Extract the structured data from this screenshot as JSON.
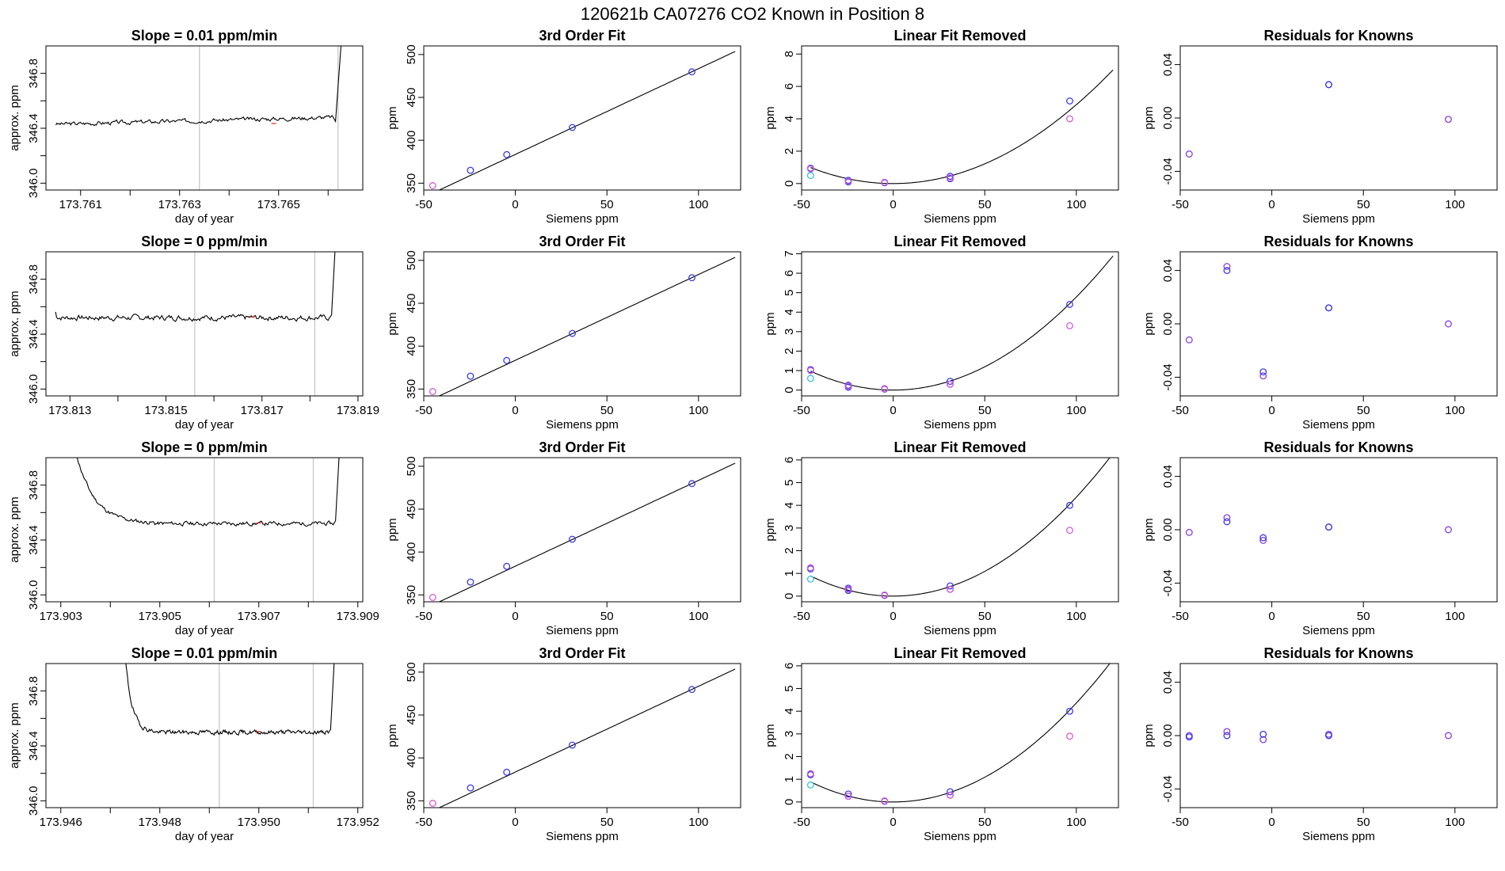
{
  "figure": {
    "title": "120621b      CA07276    CO2 Known in Position  8",
    "colors": {
      "blue": "#3a3ae6",
      "magenta": "#d75ad7",
      "cyan": "#33c3dd",
      "purple": "#8a3ce0",
      "red": "#e04040",
      "grid": "#c8c8c8"
    }
  },
  "chart_data": [
    {
      "type": "line",
      "title": "Slope =  0.01  ppm/min",
      "xlabel": "day of year",
      "ylabel": "approx. ppm",
      "xlim": [
        173.7603,
        173.7667
      ],
      "ylim": [
        345.95,
        347.0
      ],
      "xticks": [
        173.761,
        173.762,
        173.763,
        173.764,
        173.765,
        173.766
      ],
      "xtick_labels": [
        "173.761",
        "",
        "173.763",
        "",
        "173.765",
        ""
      ],
      "yticks": [
        346.0,
        346.2,
        346.4,
        346.6,
        346.8
      ],
      "ytick_labels": [
        "346.0",
        "",
        "346.4",
        "",
        "346.8"
      ],
      "vlines": [
        173.7634,
        173.7662
      ],
      "highlight_x": 173.7649,
      "trace": {
        "x0": 173.7605,
        "x1": 173.7661,
        "level": 346.43,
        "drift": 0.05,
        "noise": 0.012,
        "start_from": null,
        "start_end": null,
        "spike_at": 173.76615,
        "spike_end": 173.7663,
        "spike_to": 347.2,
        "seed": 3
      }
    },
    {
      "type": "scatter",
      "title": "3rd Order Fit",
      "xlabel": "Siemens ppm",
      "ylabel": "ppm",
      "xlim": [
        -50,
        123
      ],
      "ylim": [
        342,
        510
      ],
      "xticks": [
        -50,
        0,
        50,
        100
      ],
      "xtick_labels": [
        "-50",
        "0",
        "50",
        "100"
      ],
      "yticks": [
        350,
        400,
        450,
        500
      ],
      "ytick_labels": [
        "350",
        "400",
        "450",
        "500"
      ],
      "fit": {
        "a": 383.5,
        "b": 1.0,
        "c": 0,
        "d": 0
      },
      "series": [
        {
          "name": "blue",
          "x": [
            -24.5,
            -4.7,
            31.1,
            96.4
          ],
          "y": [
            365.0,
            383.3,
            414.9,
            479.8
          ]
        },
        {
          "name": "magenta",
          "x": [
            -45.1
          ],
          "y": [
            347.1
          ]
        }
      ]
    },
    {
      "type": "scatter",
      "title": "Linear Fit Removed",
      "xlabel": "Siemens ppm",
      "ylabel": "ppm",
      "xlim": [
        -50,
        123
      ],
      "ylim": [
        -0.4,
        8.5
      ],
      "xticks": [
        -50,
        0,
        50,
        100
      ],
      "xtick_labels": [
        "-50",
        "0",
        "50",
        "100"
      ],
      "yticks": [
        0,
        2,
        4,
        6,
        8
      ],
      "ytick_labels": [
        "0",
        "2",
        "4",
        "6",
        "8"
      ],
      "fit": {
        "a": 0,
        "b": 0.0,
        "c": 0.000487,
        "d": 0
      },
      "series": [
        {
          "name": "blue",
          "x": [
            -45.1,
            -24.5,
            -24.5,
            -4.7,
            31.1,
            31.1,
            96.4
          ],
          "y": [
            0.95,
            0.2,
            0.1,
            0.05,
            0.45,
            0.3,
            5.1
          ]
        },
        {
          "name": "magenta",
          "x": [
            -45.1,
            -24.5,
            -4.7,
            31.1,
            96.4
          ],
          "y": [
            0.9,
            0.15,
            0.08,
            0.35,
            4.0
          ]
        },
        {
          "name": "cyan",
          "x": [
            -45.1
          ],
          "y": [
            0.5
          ]
        }
      ]
    },
    {
      "type": "scatter",
      "title": "Residuals for Knowns",
      "xlabel": "Siemens ppm",
      "ylabel": "ppm",
      "xlim": [
        -50,
        123
      ],
      "ylim": [
        -0.054,
        0.054
      ],
      "xticks": [
        -50,
        0,
        50,
        100
      ],
      "xtick_labels": [
        "-50",
        "0",
        "50",
        "100"
      ],
      "yticks": [
        -0.04,
        0.0,
        0.04
      ],
      "ytick_labels": [
        "-0.04",
        "0.00",
        "0.04"
      ],
      "series": [
        {
          "name": "purple",
          "x": [
            -45.1,
            31.1,
            96.4
          ],
          "y": [
            -0.027,
            0.025,
            -0.001
          ]
        },
        {
          "name": "blue",
          "x": [
            31.1
          ],
          "y": [
            0.025
          ]
        }
      ]
    },
    {
      "type": "line",
      "title": "Slope =  0  ppm/min",
      "xlabel": "day of year",
      "ylabel": "approx. ppm",
      "xlim": [
        173.8125,
        173.8191
      ],
      "ylim": [
        345.95,
        347.0
      ],
      "xticks": [
        173.813,
        173.814,
        173.815,
        173.816,
        173.817,
        173.818,
        173.819
      ],
      "xtick_labels": [
        "173.813",
        "",
        "173.815",
        "",
        "173.817",
        "",
        "173.819"
      ],
      "yticks": [
        346.0,
        346.2,
        346.4,
        346.6,
        346.8
      ],
      "ytick_labels": [
        "346.0",
        "",
        "346.4",
        "",
        "346.8"
      ],
      "vlines": [
        173.8156,
        173.8181
      ],
      "highlight_x": 173.8168,
      "trace": {
        "x0": 173.8127,
        "x1": 173.8184,
        "level": 346.52,
        "drift": 0.0,
        "noise": 0.016,
        "start_from": 346.56,
        "start_end": 173.8128,
        "spike_at": 173.81845,
        "spike_end": 173.81855,
        "spike_to": 347.2,
        "seed": 7
      }
    },
    {
      "type": "scatter",
      "title": "3rd Order Fit",
      "xlabel": "Siemens ppm",
      "ylabel": "ppm",
      "xlim": [
        -50,
        123
      ],
      "ylim": [
        342,
        510
      ],
      "xticks": [
        -50,
        0,
        50,
        100
      ],
      "xtick_labels": [
        "-50",
        "0",
        "50",
        "100"
      ],
      "yticks": [
        350,
        400,
        450,
        500
      ],
      "ytick_labels": [
        "350",
        "400",
        "450",
        "500"
      ],
      "fit": {
        "a": 383.5,
        "b": 1.0,
        "c": 0,
        "d": 0
      },
      "series": [
        {
          "name": "blue",
          "x": [
            -24.5,
            -4.7,
            31.1,
            96.4
          ],
          "y": [
            365.0,
            383.3,
            414.9,
            479.8
          ]
        },
        {
          "name": "magenta",
          "x": [
            -45.1
          ],
          "y": [
            347.1
          ]
        }
      ]
    },
    {
      "type": "scatter",
      "title": "Linear Fit Removed",
      "xlabel": "Siemens ppm",
      "ylabel": "ppm",
      "xlim": [
        -50,
        123
      ],
      "ylim": [
        -0.3,
        7.1
      ],
      "xticks": [
        -50,
        0,
        50,
        100
      ],
      "xtick_labels": [
        "-50",
        "0",
        "50",
        "100"
      ],
      "yticks": [
        0,
        1,
        2,
        3,
        4,
        5,
        6,
        7
      ],
      "ytick_labels": [
        "0",
        "1",
        "2",
        "3",
        "4",
        "5",
        "6",
        "7"
      ],
      "fit": {
        "a": 0,
        "b": 0.0,
        "c": 0.000478,
        "d": 0
      },
      "series": [
        {
          "name": "blue",
          "x": [
            -45.1,
            -24.5,
            -24.5,
            -4.7,
            31.1,
            31.1,
            96.4
          ],
          "y": [
            1.05,
            0.25,
            0.15,
            0.05,
            0.45,
            0.3,
            4.4
          ]
        },
        {
          "name": "magenta",
          "x": [
            -45.1,
            -24.5,
            -4.7,
            31.1,
            96.4
          ],
          "y": [
            1.0,
            0.2,
            0.08,
            0.3,
            3.3
          ]
        },
        {
          "name": "cyan",
          "x": [
            -45.1
          ],
          "y": [
            0.6
          ]
        }
      ]
    },
    {
      "type": "scatter",
      "title": "Residuals for Knowns",
      "xlabel": "Siemens ppm",
      "ylabel": "ppm",
      "xlim": [
        -50,
        123
      ],
      "ylim": [
        -0.054,
        0.054
      ],
      "xticks": [
        -50,
        0,
        50,
        100
      ],
      "xtick_labels": [
        "-50",
        "0",
        "50",
        "100"
      ],
      "yticks": [
        -0.04,
        0.0,
        0.04
      ],
      "ytick_labels": [
        "-0.04",
        "0.00",
        "0.04"
      ],
      "series": [
        {
          "name": "purple",
          "x": [
            -45.1,
            -24.5,
            -4.7,
            31.1,
            96.4
          ],
          "y": [
            -0.012,
            0.043,
            -0.039,
            0.012,
            0.0
          ]
        },
        {
          "name": "blue",
          "x": [
            -24.5,
            -4.7,
            31.1
          ],
          "y": [
            0.04,
            -0.036,
            0.012
          ]
        }
      ]
    },
    {
      "type": "line",
      "title": "Slope =  0  ppm/min",
      "xlabel": "day of year",
      "ylabel": "approx. ppm",
      "xlim": [
        173.9027,
        173.9091
      ],
      "ylim": [
        345.95,
        347.0
      ],
      "xticks": [
        173.903,
        173.904,
        173.905,
        173.906,
        173.907,
        173.908,
        173.909
      ],
      "xtick_labels": [
        "173.903",
        "",
        "173.905",
        "",
        "173.907",
        "",
        "173.909"
      ],
      "vlines": [
        173.9061,
        173.9081
      ],
      "yticks": [
        346.0,
        346.2,
        346.4,
        346.6,
        346.8
      ],
      "ytick_labels": [
        "346.0",
        "",
        "346.4",
        "",
        "346.8"
      ],
      "highlight_x": 173.907,
      "trace": {
        "x0": 173.9033,
        "x1": 173.9085,
        "level": 346.52,
        "drift": 0.0,
        "noise": 0.012,
        "start_from": 347.05,
        "start_end": 173.9049,
        "spike_at": 173.90855,
        "spike_end": 173.90865,
        "spike_to": 347.2,
        "seed": 11
      }
    },
    {
      "type": "scatter",
      "title": "3rd Order Fit",
      "xlabel": "Siemens ppm",
      "ylabel": "ppm",
      "xlim": [
        -50,
        123
      ],
      "ylim": [
        342,
        510
      ],
      "xticks": [
        -50,
        0,
        50,
        100
      ],
      "xtick_labels": [
        "-50",
        "0",
        "50",
        "100"
      ],
      "yticks": [
        350,
        400,
        450,
        500
      ],
      "ytick_labels": [
        "350",
        "400",
        "450",
        "500"
      ],
      "fit": {
        "a": 383.5,
        "b": 1.0,
        "c": 0,
        "d": 0
      },
      "series": [
        {
          "name": "blue",
          "x": [
            -24.5,
            -4.7,
            31.1,
            96.4
          ],
          "y": [
            365.0,
            383.3,
            414.9,
            479.8
          ]
        },
        {
          "name": "magenta",
          "x": [
            -45.1
          ],
          "y": [
            347.1
          ]
        }
      ]
    },
    {
      "type": "scatter",
      "title": "Linear Fit Removed",
      "xlabel": "Siemens ppm",
      "ylabel": "ppm",
      "xlim": [
        -50,
        123
      ],
      "ylim": [
        -0.25,
        6.1
      ],
      "xticks": [
        -50,
        0,
        50,
        100
      ],
      "xtick_labels": [
        "-50",
        "0",
        "50",
        "100"
      ],
      "yticks": [
        0,
        1,
        2,
        3,
        4,
        5,
        6
      ],
      "ytick_labels": [
        "0",
        "1",
        "2",
        "3",
        "4",
        "5",
        "6"
      ],
      "fit": {
        "a": 0,
        "b": 0.0,
        "c": 0.000436,
        "d": 0
      },
      "series": [
        {
          "name": "blue",
          "x": [
            -45.1,
            -24.5,
            -24.5,
            -4.7,
            31.1,
            31.1,
            96.4
          ],
          "y": [
            1.2,
            0.35,
            0.25,
            0.03,
            0.45,
            0.3,
            4.0
          ]
        },
        {
          "name": "magenta",
          "x": [
            -45.1,
            -24.5,
            -4.7,
            31.1,
            96.4
          ],
          "y": [
            1.25,
            0.3,
            0.05,
            0.3,
            2.9
          ]
        },
        {
          "name": "cyan",
          "x": [
            -45.1
          ],
          "y": [
            0.75
          ]
        }
      ]
    },
    {
      "type": "scatter",
      "title": "Residuals for Knowns",
      "xlabel": "Siemens ppm",
      "ylabel": "ppm",
      "xlim": [
        -50,
        123
      ],
      "ylim": [
        -0.054,
        0.054
      ],
      "xticks": [
        -50,
        0,
        50,
        100
      ],
      "xtick_labels": [
        "-50",
        "0",
        "50",
        "100"
      ],
      "yticks": [
        -0.04,
        0.0,
        0.04
      ],
      "ytick_labels": [
        "-0.04",
        "0.00",
        "0.04"
      ],
      "series": [
        {
          "name": "purple",
          "x": [
            -45.1,
            -24.5,
            -4.7,
            31.1,
            96.4
          ],
          "y": [
            -0.002,
            0.009,
            -0.008,
            0.002,
            0.0
          ]
        },
        {
          "name": "blue",
          "x": [
            -24.5,
            -4.7,
            31.1
          ],
          "y": [
            0.006,
            -0.006,
            0.002
          ]
        }
      ]
    },
    {
      "type": "line",
      "title": "Slope =  0.01  ppm/min",
      "xlabel": "day of year",
      "ylabel": "approx. ppm",
      "xlim": [
        173.9457,
        173.9521
      ],
      "ylim": [
        345.95,
        347.0
      ],
      "xticks": [
        173.946,
        173.947,
        173.948,
        173.949,
        173.95,
        173.951,
        173.952
      ],
      "xtick_labels": [
        "173.946",
        "",
        "173.948",
        "",
        "173.950",
        "",
        "173.952"
      ],
      "yticks": [
        346.0,
        346.2,
        346.4,
        346.6,
        346.8
      ],
      "ytick_labels": [
        "346.0",
        "",
        "346.4",
        "",
        "346.8"
      ],
      "vlines": [
        173.9492,
        173.9511
      ],
      "highlight_x": 173.95,
      "trace": {
        "x0": 173.9473,
        "x1": 173.9514,
        "level": 346.5,
        "drift": 0.0,
        "noise": 0.013,
        "start_from": 347.05,
        "start_end": 173.9479,
        "spike_at": 173.95145,
        "spike_end": 173.95155,
        "spike_to": 347.2,
        "seed": 19
      }
    },
    {
      "type": "scatter",
      "title": "3rd Order Fit",
      "xlabel": "Siemens ppm",
      "ylabel": "ppm",
      "xlim": [
        -50,
        123
      ],
      "ylim": [
        342,
        510
      ],
      "xticks": [
        -50,
        0,
        50,
        100
      ],
      "xtick_labels": [
        "-50",
        "0",
        "50",
        "100"
      ],
      "yticks": [
        350,
        400,
        450,
        500
      ],
      "ytick_labels": [
        "350",
        "400",
        "450",
        "500"
      ],
      "fit": {
        "a": 383.5,
        "b": 1.0,
        "c": 0,
        "d": 0
      },
      "series": [
        {
          "name": "blue",
          "x": [
            -24.5,
            -4.7,
            31.1,
            96.4
          ],
          "y": [
            365.0,
            383.3,
            414.9,
            479.8
          ]
        },
        {
          "name": "magenta",
          "x": [
            -45.1
          ],
          "y": [
            347.1
          ]
        }
      ]
    },
    {
      "type": "scatter",
      "title": "Linear Fit Removed",
      "xlabel": "Siemens ppm",
      "ylabel": "ppm",
      "xlim": [
        -50,
        123
      ],
      "ylim": [
        -0.25,
        6.1
      ],
      "xticks": [
        -50,
        0,
        50,
        100
      ],
      "xtick_labels": [
        "-50",
        "0",
        "50",
        "100"
      ],
      "yticks": [
        0,
        1,
        2,
        3,
        4,
        5,
        6
      ],
      "ytick_labels": [
        "0",
        "1",
        "2",
        "3",
        "4",
        "5",
        "6"
      ],
      "fit": {
        "a": 0,
        "b": 0.0,
        "c": 0.000436,
        "d": 0
      },
      "series": [
        {
          "name": "blue",
          "x": [
            -45.1,
            -24.5,
            -24.5,
            -4.7,
            31.1,
            31.1,
            96.4
          ],
          "y": [
            1.2,
            0.35,
            0.25,
            0.03,
            0.45,
            0.3,
            4.0
          ]
        },
        {
          "name": "magenta",
          "x": [
            -45.1,
            -24.5,
            -4.7,
            31.1,
            96.4
          ],
          "y": [
            1.25,
            0.25,
            0.05,
            0.3,
            2.9
          ]
        },
        {
          "name": "cyan",
          "x": [
            -45.1
          ],
          "y": [
            0.75
          ]
        }
      ]
    },
    {
      "type": "scatter",
      "title": "Residuals for Knowns",
      "xlabel": "Siemens ppm",
      "ylabel": "ppm",
      "xlim": [
        -50,
        123
      ],
      "ylim": [
        -0.054,
        0.054
      ],
      "xticks": [
        -50,
        0,
        50,
        100
      ],
      "xtick_labels": [
        "-50",
        "0",
        "50",
        "100"
      ],
      "yticks": [
        -0.04,
        0.0,
        0.04
      ],
      "ytick_labels": [
        "-0.04",
        "0.00",
        "0.04"
      ],
      "series": [
        {
          "name": "purple",
          "x": [
            -45.1,
            -24.5,
            -4.7,
            31.1,
            96.4
          ],
          "y": [
            0.0,
            0.003,
            -0.003,
            0.001,
            0.0
          ]
        },
        {
          "name": "blue",
          "x": [
            -45.1,
            -24.5,
            -4.7,
            31.1
          ],
          "y": [
            -0.001,
            0.0,
            0.001,
            0.0
          ]
        }
      ]
    }
  ]
}
